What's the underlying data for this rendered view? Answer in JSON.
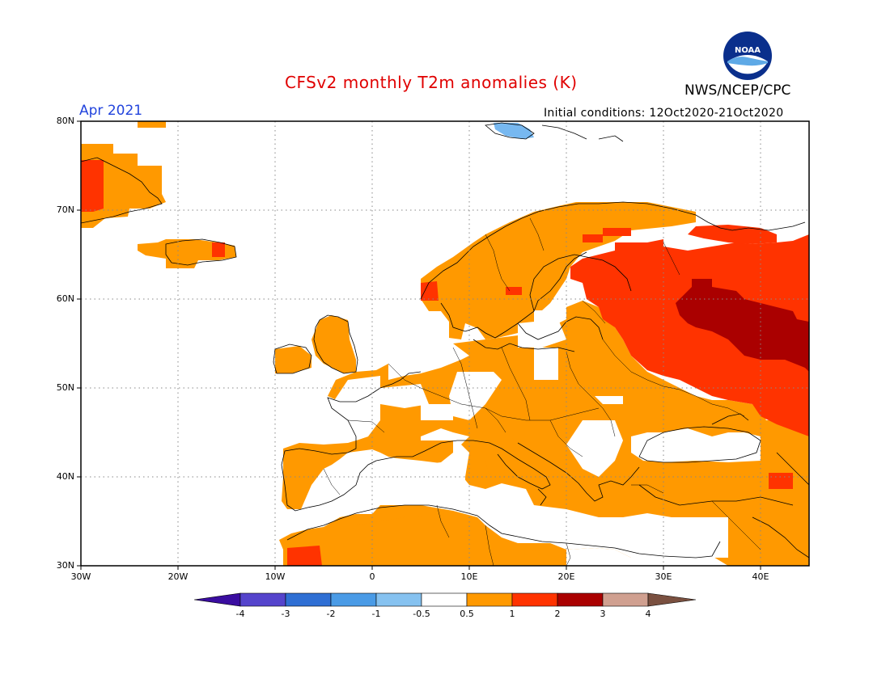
{
  "header": {
    "title": "CFSv2 monthly T2m anomalies (K)",
    "agency": "NWS/NCEP/CPC",
    "logo_text": "NOAA",
    "month": "Apr 2021",
    "initial_conditions": "Initial conditions: 12Oct2020-21Oct2020"
  },
  "map": {
    "region": "Europe",
    "lat_ticks": [
      "80N",
      "70N",
      "60N",
      "50N",
      "40N",
      "30N"
    ],
    "lon_ticks": [
      "30W",
      "20W",
      "10W",
      "0",
      "10E",
      "20E",
      "30E",
      "40E"
    ],
    "anomaly_classes": {
      "white": "#ffffff",
      "0.5_1": "#ff9900",
      "1_2": "#ff3300",
      "2_3": "#aa0000",
      "cold_-0.5_-1": "#77b8f0"
    }
  },
  "colorbar": {
    "labels": [
      "-4",
      "-3",
      "-2",
      "-1",
      "-0.5",
      "0.5",
      "1",
      "2",
      "3",
      "4"
    ],
    "colors": [
      "#3a0da0",
      "#5544cc",
      "#2f6fd4",
      "#4a9be6",
      "#86c2f0",
      "#ffffff",
      "#ff9900",
      "#ff3300",
      "#aa0000",
      "#d0a090",
      "#7a5040"
    ]
  }
}
